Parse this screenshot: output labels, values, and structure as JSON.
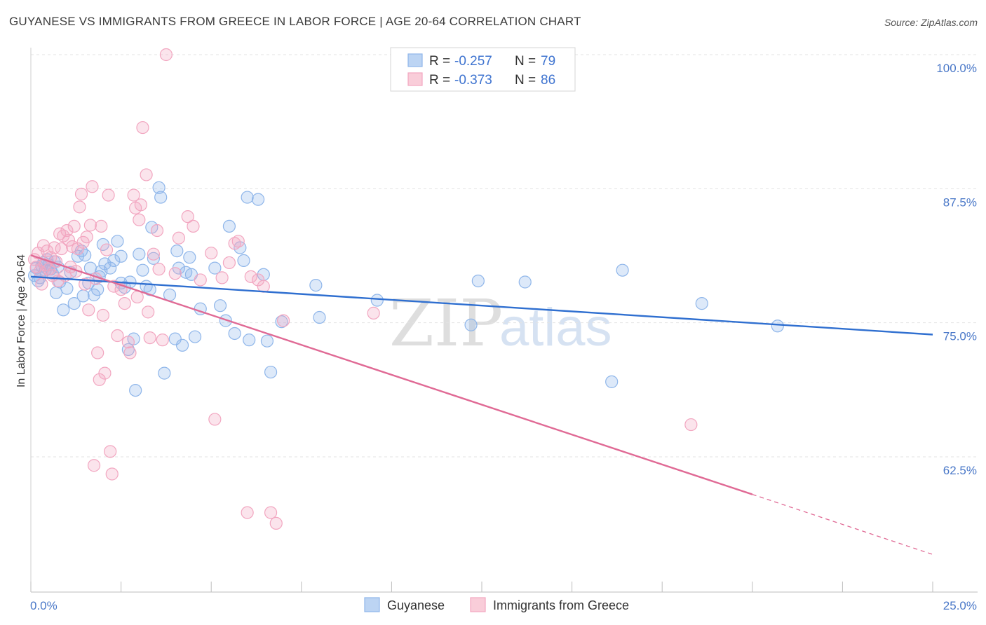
{
  "header": {
    "title": "GUYANESE VS IMMIGRANTS FROM GREECE IN LABOR FORCE | AGE 20-64 CORRELATION CHART",
    "source": "Source: ZipAtlas.com"
  },
  "watermark": {
    "zip": "ZIP",
    "atlas": "atlas"
  },
  "legend_box": [
    {
      "r_label": "R =",
      "r_value": "-0.257",
      "n_label": "N =",
      "n_value": "79",
      "color": "#8fb6ea"
    },
    {
      "r_label": "R =",
      "r_value": "-0.373",
      "n_label": "N =",
      "n_value": "86",
      "color": "#f2a6c0"
    }
  ],
  "bottom_legend": [
    {
      "label": "Guyanese",
      "color": "#8fb6ea"
    },
    {
      "label": "Immigrants from Greece",
      "color": "#f2a6c0"
    }
  ],
  "chart_data": {
    "type": "scatter",
    "ylabel": "In Labor Force | Age 20-64",
    "xlim": [
      0,
      25
    ],
    "ylim": [
      52.5,
      101.5
    ],
    "x_tick_labels": [
      {
        "value": 0,
        "label": "0.0%"
      },
      {
        "value": 25,
        "label": "25.0%"
      }
    ],
    "y_tick_labels": [
      {
        "value": 100,
        "label": "100.0%"
      },
      {
        "value": 87.5,
        "label": "87.5%"
      },
      {
        "value": 75,
        "label": "75.0%"
      },
      {
        "value": 62.5,
        "label": "62.5%"
      }
    ],
    "series": [
      {
        "name": "Guyanese",
        "color": "#8fb6ea",
        "line_color": "#2f6fd0",
        "trend": {
          "x0": 0,
          "y0": 79.3,
          "x1": 25,
          "y1": 73.9,
          "dashed_from": null
        },
        "points": [
          [
            0.1,
            79.4
          ],
          [
            0.15,
            80.1
          ],
          [
            0.2,
            78.9
          ],
          [
            0.25,
            79.2
          ],
          [
            0.3,
            80.3
          ],
          [
            0.35,
            80.6
          ],
          [
            0.4,
            79.9
          ],
          [
            0.45,
            80.9
          ],
          [
            0.5,
            80.4
          ],
          [
            0.55,
            80.0
          ],
          [
            0.6,
            79.6
          ],
          [
            0.65,
            80.7
          ],
          [
            0.7,
            77.8
          ],
          [
            0.75,
            80.2
          ],
          [
            0.8,
            78.8
          ],
          [
            0.9,
            76.2
          ],
          [
            1.0,
            78.2
          ],
          [
            1.1,
            79.7
          ],
          [
            1.2,
            76.8
          ],
          [
            1.3,
            81.2
          ],
          [
            1.4,
            81.7
          ],
          [
            1.45,
            77.5
          ],
          [
            1.5,
            81.3
          ],
          [
            1.6,
            78.7
          ],
          [
            1.65,
            80.1
          ],
          [
            1.75,
            77.6
          ],
          [
            1.85,
            78.1
          ],
          [
            1.9,
            79.3
          ],
          [
            1.95,
            79.8
          ],
          [
            2.0,
            82.3
          ],
          [
            2.05,
            80.5
          ],
          [
            2.2,
            80.1
          ],
          [
            2.3,
            80.8
          ],
          [
            2.4,
            82.6
          ],
          [
            2.5,
            81.2
          ],
          [
            2.5,
            78.7
          ],
          [
            2.6,
            78.3
          ],
          [
            2.7,
            72.5
          ],
          [
            2.75,
            78.8
          ],
          [
            2.85,
            73.5
          ],
          [
            2.9,
            68.7
          ],
          [
            3.0,
            81.4
          ],
          [
            3.1,
            79.9
          ],
          [
            3.2,
            78.4
          ],
          [
            3.3,
            78.1
          ],
          [
            3.35,
            83.9
          ],
          [
            3.4,
            81.0
          ],
          [
            3.55,
            87.6
          ],
          [
            3.6,
            86.7
          ],
          [
            3.7,
            70.3
          ],
          [
            3.85,
            77.6
          ],
          [
            4.0,
            73.5
          ],
          [
            4.05,
            81.7
          ],
          [
            4.1,
            80.1
          ],
          [
            4.2,
            72.9
          ],
          [
            4.3,
            79.7
          ],
          [
            4.4,
            81.1
          ],
          [
            4.45,
            79.5
          ],
          [
            4.55,
            73.7
          ],
          [
            4.7,
            76.3
          ],
          [
            5.1,
            80.1
          ],
          [
            5.25,
            76.6
          ],
          [
            5.4,
            75.2
          ],
          [
            5.5,
            84.0
          ],
          [
            5.65,
            74.0
          ],
          [
            5.8,
            82.0
          ],
          [
            5.9,
            80.8
          ],
          [
            6.0,
            86.7
          ],
          [
            6.05,
            73.4
          ],
          [
            6.3,
            86.5
          ],
          [
            6.45,
            79.5
          ],
          [
            6.55,
            73.3
          ],
          [
            6.65,
            70.4
          ],
          [
            6.95,
            75.1
          ],
          [
            7.9,
            78.5
          ],
          [
            8.0,
            75.5
          ],
          [
            9.6,
            77.1
          ],
          [
            12.2,
            74.8
          ],
          [
            12.4,
            78.9
          ],
          [
            13.7,
            78.8
          ],
          [
            16.1,
            69.5
          ],
          [
            16.4,
            79.9
          ],
          [
            18.6,
            76.8
          ],
          [
            20.7,
            74.7
          ]
        ]
      },
      {
        "name": "Immigrants from Greece",
        "color": "#f2a6c0",
        "line_color": "#e06a95",
        "trend": {
          "x0": 0,
          "y0": 81.3,
          "x1": 20.0,
          "y1": 59.0,
          "dashed_to": [
            25,
            53.4
          ]
        },
        "points": [
          [
            0.1,
            80.9
          ],
          [
            0.15,
            80.2
          ],
          [
            0.2,
            81.5
          ],
          [
            0.25,
            79.8
          ],
          [
            0.3,
            78.6
          ],
          [
            0.35,
            82.2
          ],
          [
            0.4,
            80.4
          ],
          [
            0.45,
            81.7
          ],
          [
            0.5,
            80.0
          ],
          [
            0.55,
            81.1
          ],
          [
            0.6,
            79.4
          ],
          [
            0.65,
            82.0
          ],
          [
            0.7,
            80.7
          ],
          [
            0.75,
            78.9
          ],
          [
            0.8,
            83.3
          ],
          [
            0.85,
            81.9
          ],
          [
            0.9,
            83.1
          ],
          [
            0.95,
            79.4
          ],
          [
            1.0,
            83.6
          ],
          [
            1.05,
            82.7
          ],
          [
            1.1,
            80.2
          ],
          [
            1.15,
            82.1
          ],
          [
            1.2,
            84.0
          ],
          [
            1.25,
            79.8
          ],
          [
            1.3,
            81.9
          ],
          [
            1.35,
            85.8
          ],
          [
            1.4,
            87.0
          ],
          [
            1.45,
            82.5
          ],
          [
            1.5,
            78.6
          ],
          [
            1.55,
            83.0
          ],
          [
            1.6,
            76.2
          ],
          [
            1.65,
            84.1
          ],
          [
            1.7,
            87.7
          ],
          [
            1.75,
            61.7
          ],
          [
            1.8,
            79.1
          ],
          [
            1.85,
            72.2
          ],
          [
            1.9,
            69.7
          ],
          [
            1.95,
            84.0
          ],
          [
            2.0,
            75.7
          ],
          [
            2.05,
            70.3
          ],
          [
            2.1,
            81.8
          ],
          [
            2.15,
            86.9
          ],
          [
            2.2,
            63.0
          ],
          [
            2.25,
            60.9
          ],
          [
            2.3,
            78.4
          ],
          [
            2.4,
            73.8
          ],
          [
            2.5,
            78.1
          ],
          [
            2.6,
            76.8
          ],
          [
            2.7,
            73.2
          ],
          [
            2.75,
            72.2
          ],
          [
            2.85,
            86.9
          ],
          [
            2.9,
            85.7
          ],
          [
            2.95,
            77.4
          ],
          [
            3.0,
            84.6
          ],
          [
            3.05,
            86.0
          ],
          [
            3.1,
            93.2
          ],
          [
            3.2,
            88.8
          ],
          [
            3.25,
            76.0
          ],
          [
            3.3,
            73.6
          ],
          [
            3.4,
            81.4
          ],
          [
            3.5,
            83.6
          ],
          [
            3.55,
            80.0
          ],
          [
            3.65,
            73.4
          ],
          [
            3.75,
            100.0
          ],
          [
            4.0,
            79.6
          ],
          [
            4.1,
            82.9
          ],
          [
            4.35,
            84.9
          ],
          [
            4.5,
            84.0
          ],
          [
            4.7,
            79.0
          ],
          [
            5.0,
            81.5
          ],
          [
            5.1,
            66.0
          ],
          [
            5.3,
            79.2
          ],
          [
            5.5,
            80.6
          ],
          [
            5.65,
            82.4
          ],
          [
            5.75,
            82.6
          ],
          [
            6.0,
            57.3
          ],
          [
            6.1,
            79.3
          ],
          [
            6.3,
            79.0
          ],
          [
            6.45,
            78.4
          ],
          [
            6.65,
            57.3
          ],
          [
            6.8,
            56.3
          ],
          [
            7.0,
            75.2
          ],
          [
            9.5,
            75.9
          ],
          [
            18.3,
            65.5
          ]
        ]
      }
    ]
  }
}
